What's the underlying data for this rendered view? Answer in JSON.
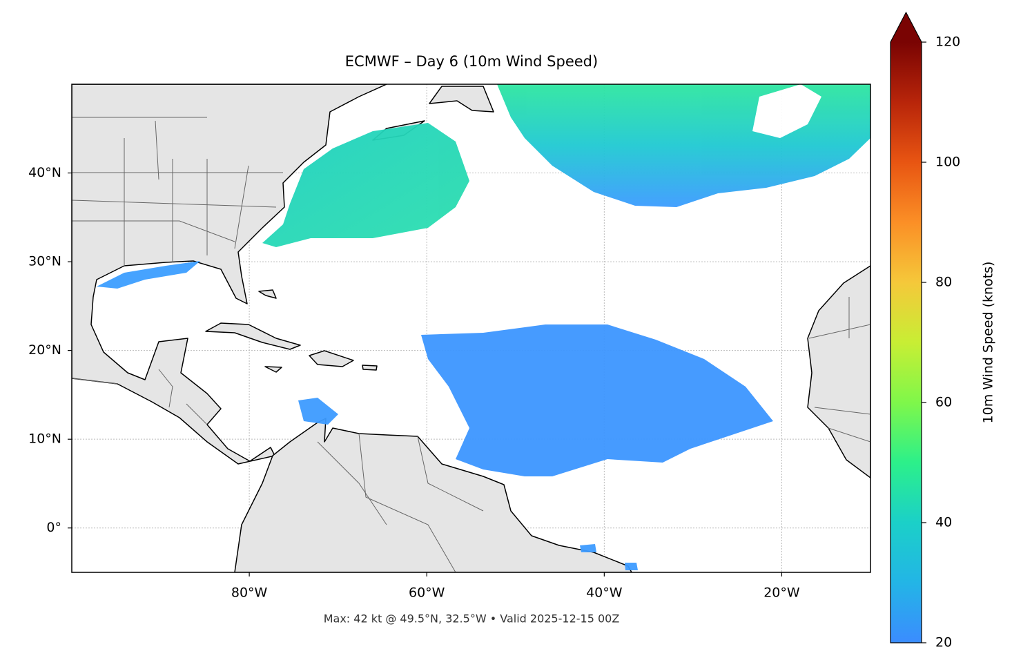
{
  "map": {
    "title": "ECMWF – Day 6 (10m Wind Speed)",
    "lonlim": [
      -100,
      -10
    ],
    "latlim": [
      -5,
      50
    ],
    "lon_ticks": [
      {
        "value": -80,
        "label": "80°W"
      },
      {
        "value": -60,
        "label": "60°W"
      },
      {
        "value": -40,
        "label": "40°W"
      },
      {
        "value": -20,
        "label": "20°W"
      }
    ],
    "lat_ticks": [
      {
        "value": 0,
        "label": "0°"
      },
      {
        "value": 10,
        "label": "10°N"
      },
      {
        "value": 20,
        "label": "20°N"
      },
      {
        "value": 30,
        "label": "30°N"
      },
      {
        "value": 40,
        "label": "40°N"
      }
    ],
    "grid": true,
    "colorbar": {
      "label": "10m Wind Speed (knots)",
      "lim": [
        20,
        120
      ],
      "ticks": [
        20,
        40,
        60,
        80,
        100,
        120
      ]
    },
    "footer": "Max: 42 kt @ 49.5°N, 32.5°W • Valid 2025-12-15 00Z"
  }
}
